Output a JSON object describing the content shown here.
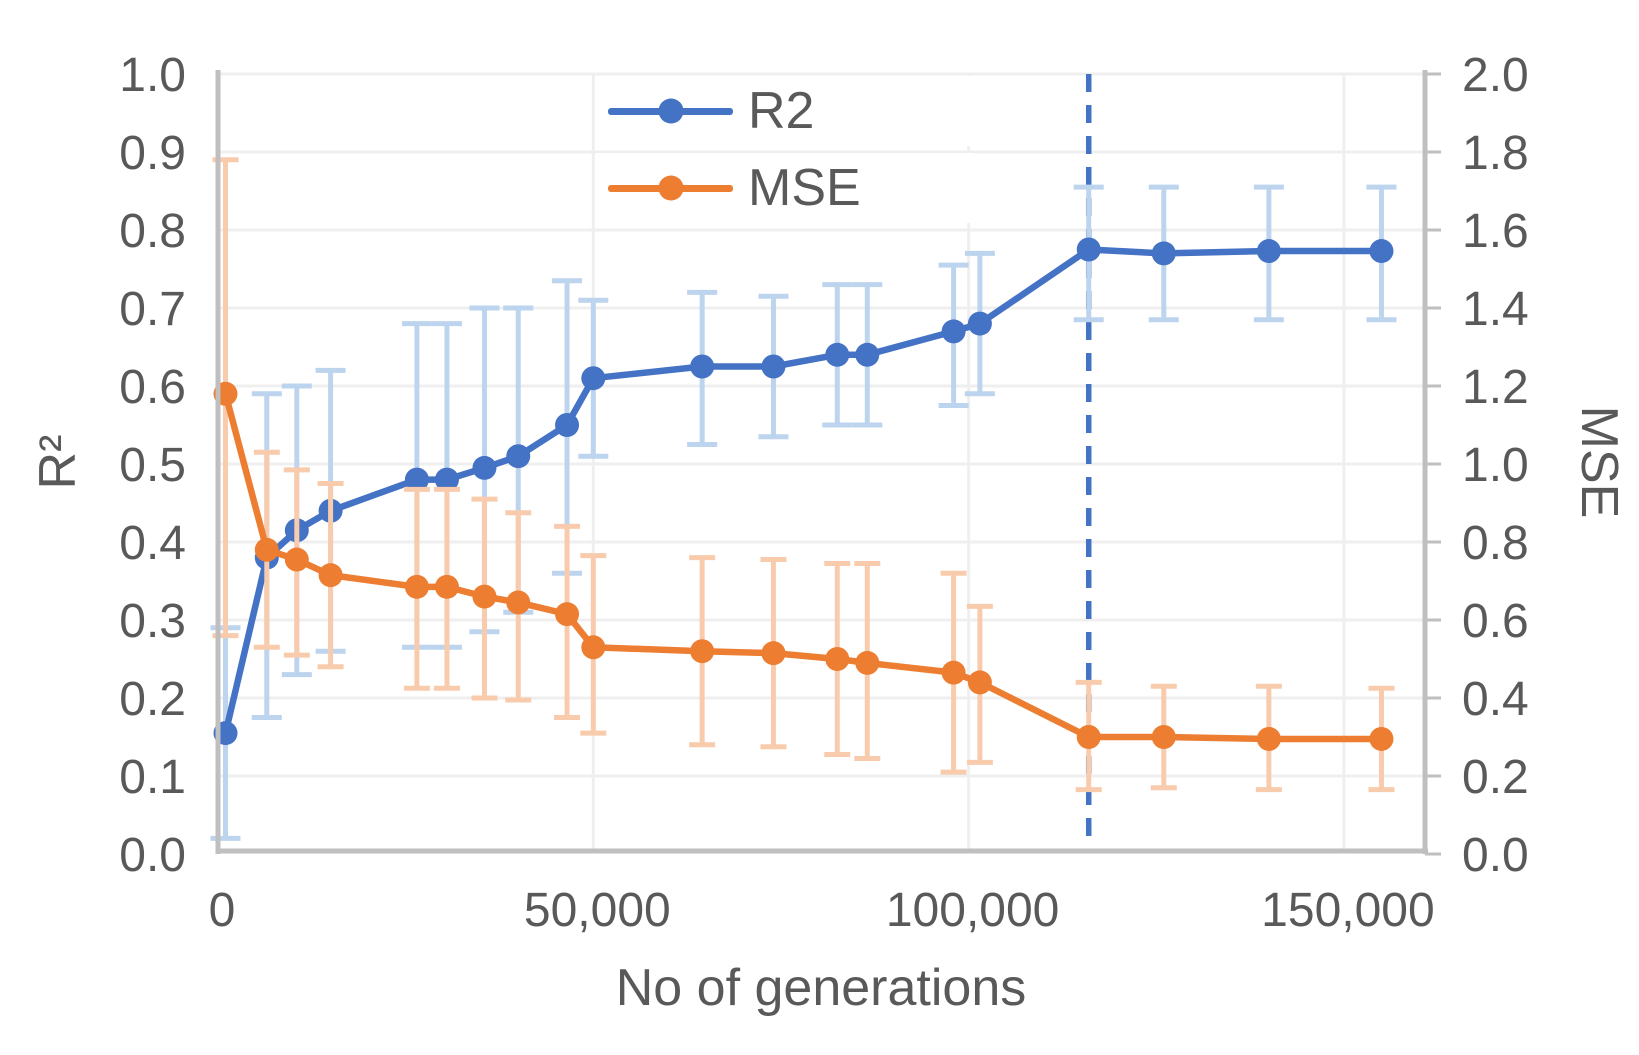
{
  "chart": {
    "colors": {
      "r2_line": "#4472C4",
      "mse_line": "#ED7D31",
      "r2_error_bar": "#BDD4EE",
      "mse_error_bar": "#F8CBAD",
      "gridline": "#EFEFEF",
      "axis_line": "#BFBFBF",
      "text": "#595959",
      "annotation_line": "#4472C4",
      "background": "#FFFFFF"
    }
  },
  "chart_data": {
    "type": "line",
    "title": "",
    "xlabel": "No of generations",
    "ylabel_left": "R²",
    "ylabel_right": "MSE",
    "grid": true,
    "legend_position": "top-center",
    "xlim": [
      0,
      160800
    ],
    "ylim_left": [
      0.0,
      1.0
    ],
    "ylim_right": [
      0.0,
      2.0
    ],
    "x_ticks": [
      {
        "value": 0,
        "label": "0"
      },
      {
        "value": 50000,
        "label": "50,000"
      },
      {
        "value": 100000,
        "label": "100,000"
      },
      {
        "value": 150000,
        "label": "150,000"
      }
    ],
    "y_ticks_left": [
      "0.0",
      "0.1",
      "0.2",
      "0.3",
      "0.4",
      "0.5",
      "0.6",
      "0.7",
      "0.8",
      "0.9",
      "1.0"
    ],
    "y_ticks_right": [
      "0.0",
      "0.2",
      "0.4",
      "0.6",
      "0.8",
      "1.0",
      "1.2",
      "1.4",
      "1.6",
      "1.8",
      "2.0"
    ],
    "annotation_line": {
      "x": 116000,
      "style": "dashed",
      "color": "#4472C4"
    },
    "x": [
      1000,
      6500,
      10500,
      15000,
      26500,
      30500,
      35500,
      40000,
      46500,
      50000,
      64500,
      74000,
      82500,
      86500,
      98000,
      101500,
      116000,
      126000,
      140000,
      155000
    ],
    "series": [
      {
        "name": "R2",
        "axis": "left",
        "color": "#4472C4",
        "error_color": "#BDD4EE",
        "values": [
          0.155,
          0.38,
          0.415,
          0.44,
          0.48,
          0.48,
          0.495,
          0.51,
          0.55,
          0.61,
          0.625,
          0.625,
          0.64,
          0.64,
          0.67,
          0.68,
          0.775,
          0.77,
          0.773,
          0.773
        ],
        "err_lo": [
          0.02,
          0.175,
          0.23,
          0.26,
          0.265,
          0.265,
          0.285,
          0.31,
          0.36,
          0.51,
          0.525,
          0.535,
          0.55,
          0.55,
          0.575,
          0.59,
          0.685,
          0.685,
          0.685,
          0.685
        ],
        "err_hi": [
          0.29,
          0.59,
          0.6,
          0.62,
          0.68,
          0.68,
          0.7,
          0.7,
          0.735,
          0.71,
          0.72,
          0.715,
          0.73,
          0.73,
          0.755,
          0.77,
          0.855,
          0.855,
          0.855,
          0.855
        ]
      },
      {
        "name": "MSE",
        "axis": "right",
        "color": "#ED7D31",
        "error_color": "#F8CBAD",
        "values": [
          1.18,
          0.78,
          0.755,
          0.715,
          0.685,
          0.685,
          0.66,
          0.645,
          0.615,
          0.53,
          0.52,
          0.515,
          0.5,
          0.49,
          0.465,
          0.44,
          0.3,
          0.3,
          0.295,
          0.295
        ],
        "err_lo": [
          0.56,
          0.53,
          0.51,
          0.48,
          0.425,
          0.425,
          0.4,
          0.395,
          0.35,
          0.31,
          0.28,
          0.275,
          0.255,
          0.245,
          0.21,
          0.235,
          0.165,
          0.17,
          0.165,
          0.165
        ],
        "err_hi": [
          1.78,
          1.03,
          0.985,
          0.95,
          0.935,
          0.935,
          0.91,
          0.875,
          0.84,
          0.765,
          0.76,
          0.755,
          0.745,
          0.745,
          0.72,
          0.635,
          0.44,
          0.43,
          0.43,
          0.425
        ]
      }
    ],
    "legend": [
      {
        "label": "R2",
        "color": "#4472C4"
      },
      {
        "label": "MSE",
        "color": "#ED7D31"
      }
    ]
  }
}
